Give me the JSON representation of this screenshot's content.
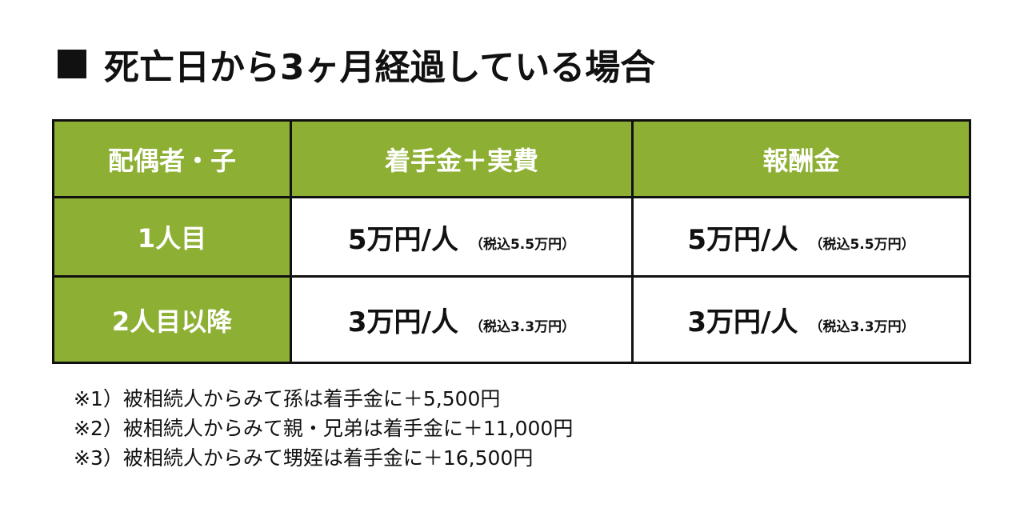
{
  "title": "死亡日から3ヶ月経過している場合",
  "colors": {
    "header_bg": "#8daf34",
    "border": "#111111"
  },
  "table": {
    "headers": [
      "配偶者・子",
      "着手金＋実費",
      "報酬金"
    ],
    "rows": [
      {
        "label": "1人目",
        "cells": [
          {
            "price": "5万円/人",
            "tax": "（税込5.5万円）"
          },
          {
            "price": "5万円/人",
            "tax": "（税込5.5万円）"
          }
        ]
      },
      {
        "label": "2人目以降",
        "cells": [
          {
            "price": "3万円/人",
            "tax": "（税込3.3万円）"
          },
          {
            "price": "3万円/人",
            "tax": "（税込3.3万円）"
          }
        ]
      }
    ]
  },
  "notes": [
    "※1）被相続人からみて孫は着手金に＋5,500円",
    "※2）被相続人からみて親・兄弟は着手金に＋11,000円",
    "※3）被相続人からみて甥姪は着手金に＋16,500円"
  ]
}
